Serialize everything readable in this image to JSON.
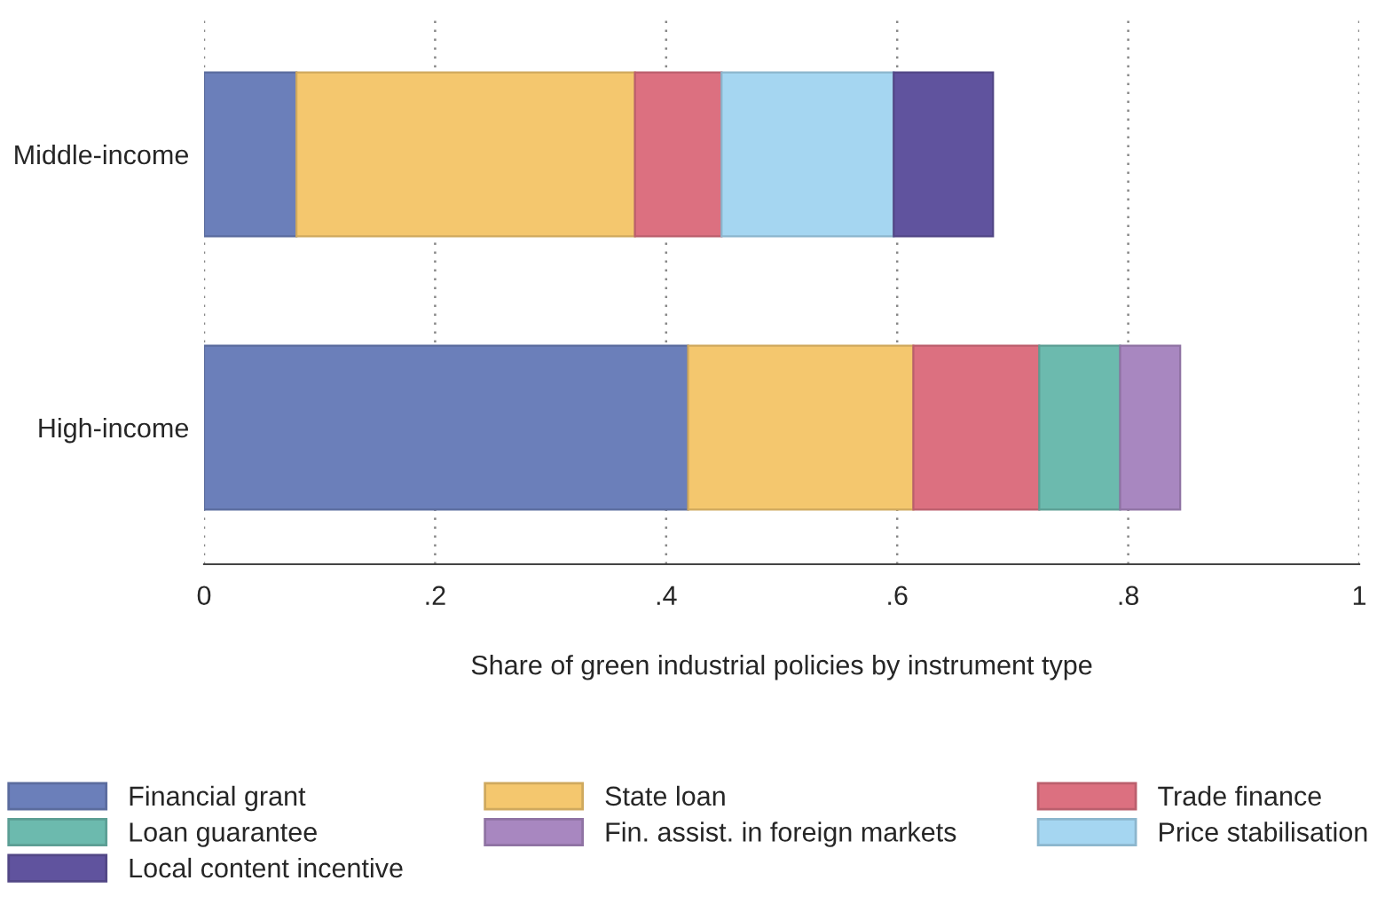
{
  "chart_data": {
    "type": "bar",
    "orientation": "horizontal",
    "stacked": true,
    "xlabel": "Share of green industrial policies by instrument type",
    "categories": [
      "Middle-income",
      "High-income"
    ],
    "series": [
      {
        "name": "Financial grant",
        "color": "#6b7fba",
        "values": [
          0.08,
          0.419
        ]
      },
      {
        "name": "State loan",
        "color": "#f4c76e",
        "values": [
          0.293,
          0.195
        ]
      },
      {
        "name": "Trade finance",
        "color": "#dc7080",
        "values": [
          0.075,
          0.109
        ]
      },
      {
        "name": "Loan guarantee",
        "color": "#6cbaae",
        "values": [
          0,
          0.07
        ]
      },
      {
        "name": "Fin. assist. in foreign markets",
        "color": "#a887c0",
        "values": [
          0,
          0.052
        ]
      },
      {
        "name": "Price stabilisation",
        "color": "#a5d6f1",
        "values": [
          0.149,
          0
        ]
      },
      {
        "name": "Local content incentive",
        "color": "#60539e",
        "values": [
          0.086,
          0
        ]
      }
    ],
    "xlim": [
      0,
      1
    ],
    "xticks": [
      {
        "value": 0,
        "label": "0"
      },
      {
        "value": 0.2,
        "label": ".2"
      },
      {
        "value": 0.4,
        "label": ".4"
      },
      {
        "value": 0.6,
        "label": ".6"
      },
      {
        "value": 0.8,
        "label": ".8"
      },
      {
        "value": 1,
        "label": "1"
      }
    ],
    "grid": "x",
    "legend": "bottom"
  }
}
